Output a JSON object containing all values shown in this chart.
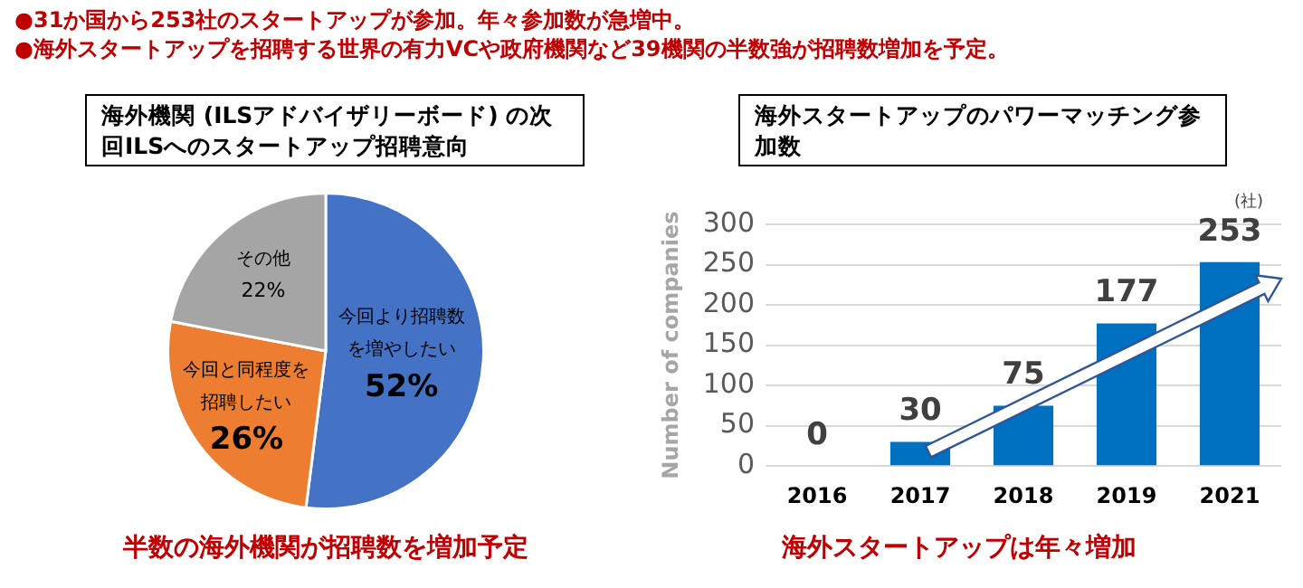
{
  "chart_data": [
    {
      "type": "other",
      "annotations": [
        "●31か国から253社のスタートアップが参加。年々参加数が急増中。",
        "●海外スタートアップを招聘する世界の有力VCや政府機関など39機関の半数強が招聘数増加を予定。"
      ]
    },
    {
      "type": "pie",
      "title": "海外機関 (ILSアドバイザリーボード) の次回ILSへのスタートアップ招聘意向",
      "categories": [
        "今回より招聘数を増やしたい",
        "今回と同程度を招聘したい",
        "その他"
      ],
      "values": [
        52,
        26,
        22
      ],
      "colors": [
        "#4472c4",
        "#ed7d31",
        "#a5a5a5"
      ],
      "value_labels": [
        "52%",
        "26%",
        "22%"
      ],
      "legend": false,
      "annotations": [
        "半数の海外機関が招聘数を増加予定"
      ]
    },
    {
      "type": "bar",
      "title": "海外スタートアップのパワーマッチング参加数",
      "categories": [
        "2016",
        "2017",
        "2018",
        "2019",
        "2021"
      ],
      "values": [
        0,
        30,
        75,
        177,
        253
      ],
      "color": "#0070c0",
      "ylabel": "Number of companies",
      "ylim": [
        0,
        300
      ],
      "yticks": [
        0,
        50,
        100,
        150,
        200,
        250,
        300
      ],
      "grid": "y",
      "data_labels": true,
      "legend": false,
      "annotations": [
        "海外スタートアップは年々増加",
        "(社)"
      ]
    }
  ]
}
